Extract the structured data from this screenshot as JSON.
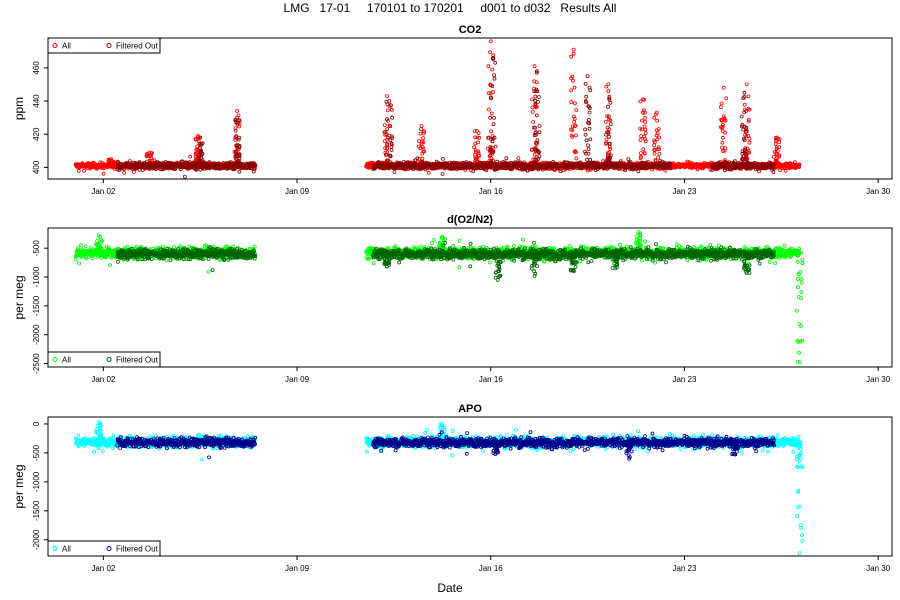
{
  "title": "LMG   17-01     170101 to 170201     d001 to d032   Results All",
  "xlabel": "Date",
  "chart_data": [
    {
      "type": "scatter",
      "title": "CO2",
      "ylabel": "ppm",
      "xlim": [
        "2016-12-31T00:00",
        "2017-01-30T12:00"
      ],
      "ylim": [
        393,
        478
      ],
      "x_ticks": [
        "Jan 02",
        "Jan 09",
        "Jan 16",
        "Jan 23",
        "Jan 30"
      ],
      "x_tick_dates": [
        "2017-01-02",
        "2017-01-09",
        "2017-01-16",
        "2017-01-23",
        "2017-01-30"
      ],
      "y_ticks": [
        400,
        420,
        440,
        460
      ],
      "legend": "top-left",
      "series": [
        {
          "name": "All",
          "color": "#ff0000",
          "baseline": 401,
          "spread": 1.2,
          "segments": [
            [
              "2017-01-01T00:00",
              "2017-01-07T12:00"
            ],
            [
              "2017-01-11T12:00",
              "2017-01-27T04:00"
            ]
          ],
          "spikes": [
            [
              "2017-01-02T07:00",
              405
            ],
            [
              "2017-01-03T16:00",
              409
            ],
            [
              "2017-01-05T10:00",
              419
            ],
            [
              "2017-01-06T20:00",
              434
            ],
            [
              "2017-01-12T06:00",
              443
            ],
            [
              "2017-01-13T12:00",
              425
            ],
            [
              "2017-01-15T12:00",
              422
            ],
            [
              "2017-01-16T00:00",
              476
            ],
            [
              "2017-01-17T14:00",
              461
            ],
            [
              "2017-01-19T00:00",
              471
            ],
            [
              "2017-01-20T06:00",
              450
            ],
            [
              "2017-01-21T12:00",
              441
            ],
            [
              "2017-01-22T00:00",
              433
            ],
            [
              "2017-01-24T10:00",
              448
            ],
            [
              "2017-01-25T06:00",
              450
            ],
            [
              "2017-01-26T08:00",
              418
            ]
          ]
        },
        {
          "name": "Filtered Out",
          "color": "#8b0000",
          "baseline": 401,
          "spread": 1.4,
          "segments": [
            [
              "2017-01-02T12:00",
              "2017-01-07T12:00"
            ],
            [
              "2017-01-11T18:00",
              "2017-01-22T12:00"
            ],
            [
              "2017-01-24T00:00",
              "2017-01-26T06:00"
            ]
          ],
          "spikes": [
            [
              "2017-01-05T12:00",
              418
            ],
            [
              "2017-01-06T20:00",
              430
            ],
            [
              "2017-01-12T08:00",
              440
            ],
            [
              "2017-01-16T02:00",
              466
            ],
            [
              "2017-01-17T16:00",
              458
            ],
            [
              "2017-01-19T12:00",
              455
            ],
            [
              "2017-01-20T06:00",
              446
            ],
            [
              "2017-01-25T04:00",
              445
            ]
          ]
        }
      ]
    },
    {
      "type": "scatter",
      "title": "d(O2/N2)",
      "ylabel": "per meg",
      "xlim": [
        "2016-12-31T00:00",
        "2017-01-30T12:00"
      ],
      "ylim": [
        -2560,
        -150
      ],
      "x_ticks": [
        "Jan 02",
        "Jan 09",
        "Jan 16",
        "Jan 23",
        "Jan 30"
      ],
      "x_tick_dates": [
        "2017-01-02",
        "2017-01-09",
        "2017-01-16",
        "2017-01-23",
        "2017-01-30"
      ],
      "y_ticks": [
        -2500,
        -2000,
        -1500,
        -1000,
        -500
      ],
      "legend": "bottom-left",
      "series": [
        {
          "name": "All",
          "color": "#00ff00",
          "baseline": -580,
          "spread": 70,
          "segments": [
            [
              "2017-01-01T00:00",
              "2017-01-07T12:00"
            ],
            [
              "2017-01-11T12:00",
              "2017-01-27T04:00"
            ]
          ],
          "spikes": [
            [
              "2017-01-01T20:00",
              -280
            ],
            [
              "2017-01-14T06:00",
              -300
            ],
            [
              "2017-01-21T08:00",
              -220
            ],
            [
              "2017-01-27T04:00",
              -2480
            ]
          ]
        },
        {
          "name": "Filtered Out",
          "color": "#006400",
          "baseline": -600,
          "spread": 60,
          "segments": [
            [
              "2017-01-02T12:00",
              "2017-01-07T12:00"
            ],
            [
              "2017-01-11T18:00",
              "2017-01-26T06:00"
            ]
          ],
          "spikes": [
            [
              "2017-01-12T06:00",
              -820
            ],
            [
              "2017-01-16T06:00",
              -1050
            ],
            [
              "2017-01-17T14:00",
              -980
            ],
            [
              "2017-01-19T00:00",
              -900
            ],
            [
              "2017-01-20T12:00",
              -850
            ],
            [
              "2017-01-25T06:00",
              -930
            ]
          ]
        }
      ]
    },
    {
      "type": "scatter",
      "title": "APO",
      "ylabel": "per meg",
      "xlim": [
        "2016-12-31T00:00",
        "2017-01-30T12:00"
      ],
      "ylim": [
        -2280,
        120
      ],
      "x_ticks": [
        "Jan 02",
        "Jan 09",
        "Jan 16",
        "Jan 23",
        "Jan 30"
      ],
      "x_tick_dates": [
        "2017-01-02",
        "2017-01-09",
        "2017-01-16",
        "2017-01-23",
        "2017-01-30"
      ],
      "y_ticks": [
        -2000,
        -1500,
        -1000,
        -500,
        0
      ],
      "legend": "bottom-left",
      "series": [
        {
          "name": "All",
          "color": "#00ffff",
          "baseline": -310,
          "spread": 65,
          "segments": [
            [
              "2017-01-01T00:00",
              "2017-01-07T12:00"
            ],
            [
              "2017-01-11T12:00",
              "2017-01-27T04:00"
            ]
          ],
          "spikes": [
            [
              "2017-01-01T20:00",
              30
            ],
            [
              "2017-01-14T06:00",
              0
            ],
            [
              "2017-01-27T04:00",
              -2230
            ]
          ]
        },
        {
          "name": "Filtered Out",
          "color": "#00008b",
          "baseline": -320,
          "spread": 55,
          "segments": [
            [
              "2017-01-02T12:00",
              "2017-01-07T12:00"
            ],
            [
              "2017-01-11T18:00",
              "2017-01-26T06:00"
            ]
          ],
          "spikes": [
            [
              "2017-01-16T04:00",
              -520
            ],
            [
              "2017-01-21T00:00",
              -600
            ],
            [
              "2017-01-24T20:00",
              -530
            ]
          ]
        }
      ]
    }
  ]
}
